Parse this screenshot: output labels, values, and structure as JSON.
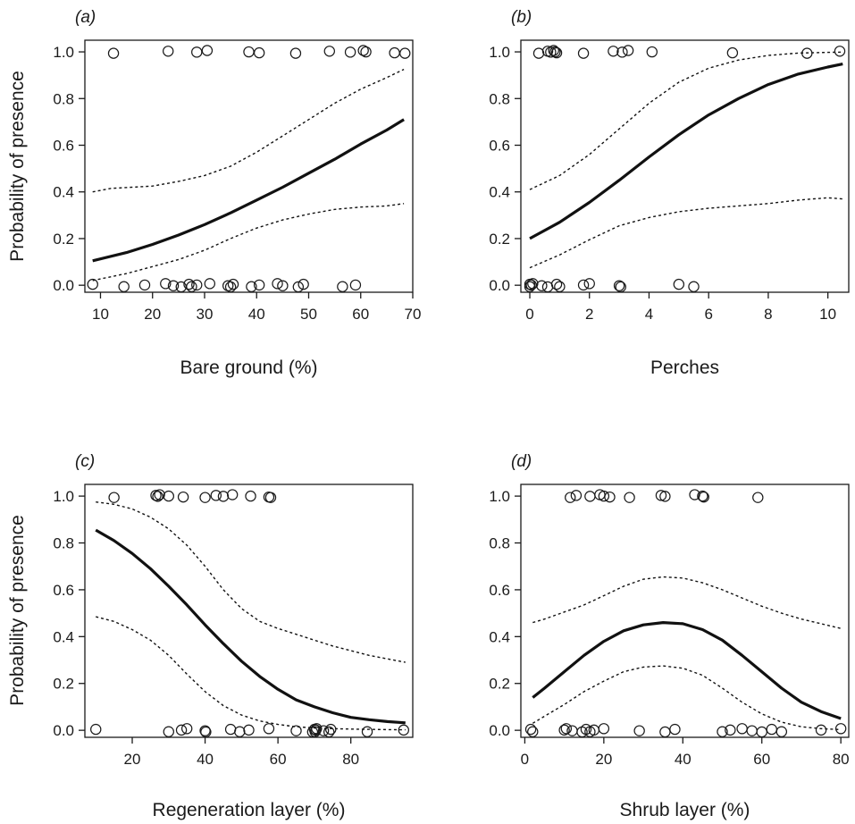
{
  "chart_data": [
    {
      "panel_label": "(a)",
      "type": "line+scatter",
      "xlabel": "Bare ground (%)",
      "ylabel": "Probability of presence",
      "xlim": [
        7,
        70
      ],
      "ylim": [
        -0.03,
        1.05
      ],
      "xticks": [
        10,
        20,
        30,
        40,
        50,
        60,
        70
      ],
      "yticks": [
        "0.0",
        "0.2",
        "0.4",
        "0.6",
        "0.8",
        "1.0"
      ],
      "fit": {
        "x": [
          8.5,
          15,
          20,
          25,
          30,
          35,
          40,
          45,
          50,
          55,
          60,
          65,
          68.3
        ],
        "y": [
          0.105,
          0.14,
          0.175,
          0.215,
          0.26,
          0.31,
          0.365,
          0.42,
          0.48,
          0.54,
          0.605,
          0.665,
          0.71
        ]
      },
      "ci_upper": {
        "x": [
          8.5,
          12,
          20,
          25,
          30,
          35,
          40,
          45,
          50,
          55,
          60,
          65,
          68.3
        ],
        "y": [
          0.4,
          0.415,
          0.425,
          0.445,
          0.47,
          0.51,
          0.57,
          0.64,
          0.71,
          0.78,
          0.84,
          0.89,
          0.925
        ]
      },
      "ci_lower": {
        "x": [
          8.5,
          15,
          20,
          25,
          30,
          35,
          40,
          45,
          50,
          55,
          60,
          65,
          68.3
        ],
        "y": [
          0.02,
          0.05,
          0.08,
          0.11,
          0.15,
          0.2,
          0.245,
          0.28,
          0.305,
          0.325,
          0.335,
          0.34,
          0.35
        ]
      },
      "presence_x": [
        12.5,
        23,
        28.5,
        30.5,
        38.5,
        40.5,
        47.5,
        54,
        58,
        60.5,
        61,
        66.5,
        68.5
      ],
      "absence_x": [
        8.5,
        14.5,
        18.5,
        22.5,
        24,
        25.5,
        27,
        27.5,
        28.5,
        31,
        34.5,
        35,
        35.5,
        39,
        40.5,
        44,
        45,
        48,
        49,
        56.5,
        59
      ]
    },
    {
      "panel_label": "(b)",
      "type": "line+scatter",
      "xlabel": "Perches",
      "ylabel": "",
      "xlim": [
        -0.3,
        10.7
      ],
      "ylim": [
        -0.03,
        1.05
      ],
      "xticks": [
        0,
        2,
        4,
        6,
        8,
        10
      ],
      "yticks": [
        "0.0",
        "0.2",
        "0.4",
        "0.6",
        "0.8",
        "1.0"
      ],
      "fit": {
        "x": [
          0,
          1,
          2,
          3,
          4,
          5,
          6,
          7,
          8,
          9,
          10,
          10.5
        ],
        "y": [
          0.2,
          0.27,
          0.355,
          0.45,
          0.55,
          0.645,
          0.73,
          0.8,
          0.86,
          0.905,
          0.935,
          0.948
        ]
      },
      "ci_upper": {
        "x": [
          0,
          1,
          2,
          3,
          4,
          5,
          6,
          7,
          8,
          9,
          10,
          10.5
        ],
        "y": [
          0.41,
          0.47,
          0.56,
          0.67,
          0.78,
          0.87,
          0.93,
          0.965,
          0.985,
          0.995,
          0.998,
          0.999
        ]
      },
      "ci_lower": {
        "x": [
          0,
          1,
          2,
          3,
          4,
          5,
          6,
          7,
          8,
          9,
          10,
          10.5
        ],
        "y": [
          0.075,
          0.13,
          0.195,
          0.255,
          0.29,
          0.315,
          0.33,
          0.34,
          0.35,
          0.365,
          0.375,
          0.37
        ]
      },
      "presence_x": [
        0.3,
        0.6,
        0.7,
        0.8,
        0.85,
        0.9,
        1.8,
        2.8,
        3.1,
        3.3,
        4.1,
        6.8,
        9.3,
        10.4
      ],
      "absence_x": [
        0,
        0,
        0.05,
        0.1,
        0.4,
        0.6,
        0.9,
        1.0,
        1.8,
        2.0,
        3.0,
        3.05,
        5.0,
        5.5
      ]
    },
    {
      "panel_label": "(c)",
      "type": "line+scatter",
      "xlabel": "Regeneration layer (%)",
      "ylabel": "Probability of presence",
      "xlim": [
        7,
        97
      ],
      "ylim": [
        -0.03,
        1.05
      ],
      "xticks": [
        20,
        40,
        60,
        80
      ],
      "yticks": [
        "0.0",
        "0.2",
        "0.4",
        "0.6",
        "0.8",
        "1.0"
      ],
      "fit": {
        "x": [
          10,
          15,
          20,
          25,
          30,
          35,
          40,
          45,
          50,
          55,
          60,
          65,
          70,
          75,
          80,
          85,
          90,
          95
        ],
        "y": [
          0.855,
          0.81,
          0.755,
          0.69,
          0.615,
          0.535,
          0.45,
          0.37,
          0.295,
          0.23,
          0.175,
          0.13,
          0.1,
          0.075,
          0.055,
          0.045,
          0.037,
          0.032
        ]
      },
      "ci_upper": {
        "x": [
          10,
          15,
          20,
          25,
          30,
          35,
          40,
          45,
          50,
          55,
          60,
          65,
          70,
          75,
          80,
          85,
          90,
          95
        ],
        "y": [
          0.975,
          0.965,
          0.945,
          0.91,
          0.86,
          0.79,
          0.7,
          0.6,
          0.52,
          0.465,
          0.435,
          0.41,
          0.385,
          0.36,
          0.34,
          0.32,
          0.305,
          0.29
        ]
      },
      "ci_lower": {
        "x": [
          10,
          15,
          20,
          25,
          30,
          35,
          40,
          45,
          50,
          55,
          60,
          65,
          70,
          75,
          80,
          85,
          90,
          95
        ],
        "y": [
          0.485,
          0.465,
          0.43,
          0.385,
          0.32,
          0.24,
          0.165,
          0.105,
          0.065,
          0.04,
          0.025,
          0.015,
          0.01,
          0.007,
          0.005,
          0.004,
          0.003,
          0.002
        ]
      },
      "presence_x": [
        15,
        26.5,
        27,
        27.5,
        30,
        34,
        40,
        43,
        45,
        47.5,
        52.5,
        57.5,
        58
      ],
      "absence_x": [
        10,
        30,
        33.5,
        35,
        40,
        40.2,
        47,
        49.5,
        52,
        57.5,
        65,
        69.5,
        70,
        70.2,
        70.4,
        70.6,
        72.5,
        74,
        74.5,
        84.5,
        94.5
      ]
    },
    {
      "panel_label": "(d)",
      "type": "line+scatter",
      "xlabel": "Shrub layer (%)",
      "ylabel": "",
      "xlim": [
        -1,
        82
      ],
      "ylim": [
        -0.03,
        1.05
      ],
      "xticks": [
        0,
        20,
        40,
        60,
        80
      ],
      "yticks": [
        "0.0",
        "0.2",
        "0.4",
        "0.6",
        "0.8",
        "1.0"
      ],
      "fit": {
        "x": [
          2,
          5,
          10,
          15,
          20,
          25,
          30,
          35,
          40,
          45,
          50,
          55,
          60,
          65,
          70,
          75,
          80
        ],
        "y": [
          0.14,
          0.18,
          0.25,
          0.32,
          0.38,
          0.425,
          0.45,
          0.46,
          0.455,
          0.43,
          0.385,
          0.32,
          0.25,
          0.18,
          0.12,
          0.08,
          0.05
        ]
      },
      "ci_upper": {
        "x": [
          2,
          5,
          10,
          15,
          20,
          25,
          30,
          35,
          40,
          45,
          50,
          55,
          60,
          65,
          70,
          75,
          80
        ],
        "y": [
          0.46,
          0.475,
          0.505,
          0.535,
          0.575,
          0.615,
          0.645,
          0.655,
          0.65,
          0.63,
          0.6,
          0.565,
          0.53,
          0.5,
          0.475,
          0.455,
          0.435
        ]
      },
      "ci_lower": {
        "x": [
          2,
          5,
          10,
          15,
          20,
          25,
          30,
          35,
          40,
          45,
          50,
          55,
          60,
          65,
          70,
          75,
          80
        ],
        "y": [
          0.03,
          0.06,
          0.11,
          0.165,
          0.21,
          0.25,
          0.27,
          0.275,
          0.265,
          0.235,
          0.18,
          0.12,
          0.07,
          0.035,
          0.015,
          0.007,
          0.003
        ]
      },
      "presence_x": [
        11.5,
        13,
        16.5,
        19,
        20,
        21.5,
        26.5,
        34.5,
        35.5,
        43,
        45,
        45.3,
        59
      ],
      "absence_x": [
        1.5,
        2,
        10,
        10.5,
        12,
        14.5,
        15.5,
        16.5,
        17.5,
        20,
        29,
        35.5,
        38,
        50,
        52,
        55,
        57.5,
        60,
        62.5,
        65,
        75,
        80
      ]
    }
  ]
}
